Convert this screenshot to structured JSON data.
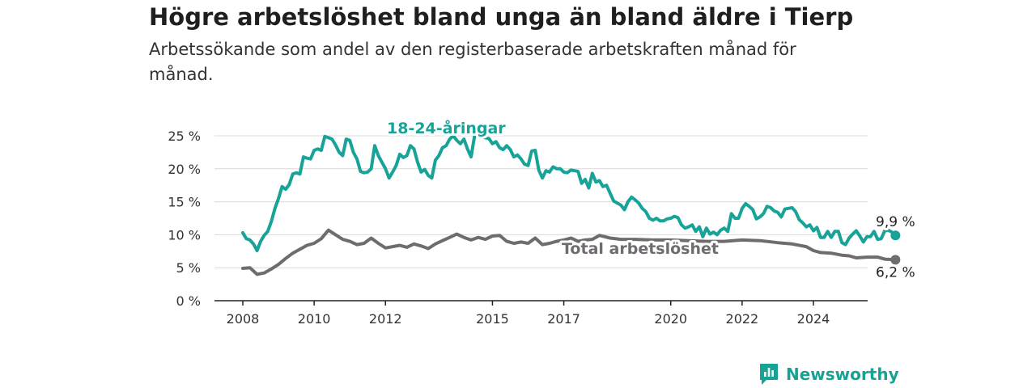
{
  "title": "Högre arbetslöshet bland unga än bland äldre i Tierp",
  "subtitle": "Arbetssökande som andel av den registerbaserade arbetskraften månad för månad.",
  "brand": {
    "name": "Newsworthy",
    "icon": "newsworthy-logo-icon",
    "color": "#16a394"
  },
  "chart_data": {
    "type": "line",
    "title": "Högre arbetslöshet bland unga än bland äldre i Tierp",
    "subtitle": "Arbetssökande som andel av den registerbaserade arbetskraften månad för månad.",
    "xlabel": "",
    "ylabel": "",
    "xlim": [
      2007.6,
      2025.6
    ],
    "ylim": [
      0,
      25
    ],
    "x_ticks": [
      {
        "value": 2008,
        "label": "2008"
      },
      {
        "value": 2010,
        "label": "2010"
      },
      {
        "value": 2012,
        "label": "2012"
      },
      {
        "value": 2015,
        "label": "2015"
      },
      {
        "value": 2017,
        "label": "2017"
      },
      {
        "value": 2020,
        "label": "2020"
      },
      {
        "value": 2022,
        "label": "2022"
      },
      {
        "value": 2024,
        "label": "2024"
      }
    ],
    "y_ticks": [
      {
        "value": 0,
        "label": "0 %"
      },
      {
        "value": 5,
        "label": "5 %"
      },
      {
        "value": 10,
        "label": "10 %"
      },
      {
        "value": 15,
        "label": "15 %"
      },
      {
        "value": 20,
        "label": "20 %"
      },
      {
        "value": 25,
        "label": "25 %"
      }
    ],
    "grid": "horizontal",
    "legend": "inline labels",
    "series": [
      {
        "name": "18-24-åringar",
        "color": "#17a398",
        "end_label": "9,9 %",
        "points": [
          [
            2008.0,
            10.3
          ],
          [
            2008.1,
            9.4
          ],
          [
            2008.2,
            9.2
          ],
          [
            2008.3,
            8.6
          ],
          [
            2008.4,
            7.6
          ],
          [
            2008.5,
            9.0
          ],
          [
            2008.6,
            9.9
          ],
          [
            2008.7,
            10.5
          ],
          [
            2008.8,
            12.0
          ],
          [
            2008.9,
            14.0
          ],
          [
            2009.0,
            15.5
          ],
          [
            2009.1,
            17.3
          ],
          [
            2009.2,
            16.9
          ],
          [
            2009.3,
            17.6
          ],
          [
            2009.4,
            19.2
          ],
          [
            2009.5,
            19.4
          ],
          [
            2009.6,
            19.2
          ],
          [
            2009.7,
            21.8
          ],
          [
            2009.8,
            21.6
          ],
          [
            2009.9,
            21.5
          ],
          [
            2010.0,
            22.8
          ],
          [
            2010.1,
            23.0
          ],
          [
            2010.2,
            22.8
          ],
          [
            2010.3,
            24.9
          ],
          [
            2010.4,
            24.7
          ],
          [
            2010.5,
            24.5
          ],
          [
            2010.6,
            23.6
          ],
          [
            2010.7,
            22.5
          ],
          [
            2010.8,
            22.0
          ],
          [
            2010.9,
            24.5
          ],
          [
            2011.0,
            24.3
          ],
          [
            2011.1,
            22.5
          ],
          [
            2011.2,
            21.5
          ],
          [
            2011.3,
            19.6
          ],
          [
            2011.4,
            19.4
          ],
          [
            2011.5,
            19.5
          ],
          [
            2011.6,
            20.0
          ],
          [
            2011.7,
            23.5
          ],
          [
            2011.8,
            22.0
          ],
          [
            2011.9,
            21.0
          ],
          [
            2012.0,
            20.0
          ],
          [
            2012.1,
            18.6
          ],
          [
            2012.2,
            19.5
          ],
          [
            2012.3,
            20.5
          ],
          [
            2012.4,
            22.2
          ],
          [
            2012.5,
            21.7
          ],
          [
            2012.6,
            22.0
          ],
          [
            2012.7,
            23.5
          ],
          [
            2012.8,
            23.0
          ],
          [
            2012.9,
            21.0
          ],
          [
            2013.0,
            19.5
          ],
          [
            2013.1,
            19.9
          ],
          [
            2013.2,
            19.0
          ],
          [
            2013.3,
            18.6
          ],
          [
            2013.4,
            21.3
          ],
          [
            2013.5,
            22.0
          ],
          [
            2013.6,
            23.2
          ],
          [
            2013.7,
            23.5
          ],
          [
            2013.8,
            24.5
          ],
          [
            2013.9,
            25.0
          ],
          [
            2014.0,
            24.3
          ],
          [
            2014.1,
            23.8
          ],
          [
            2014.2,
            24.5
          ],
          [
            2014.3,
            23.0
          ],
          [
            2014.4,
            21.8
          ],
          [
            2014.5,
            25.0
          ],
          [
            2014.9,
            24.6
          ],
          [
            2015.0,
            23.8
          ],
          [
            2015.1,
            24.1
          ],
          [
            2015.2,
            23.2
          ],
          [
            2015.3,
            22.9
          ],
          [
            2015.4,
            23.5
          ],
          [
            2015.5,
            22.9
          ],
          [
            2015.6,
            21.8
          ],
          [
            2015.7,
            22.1
          ],
          [
            2015.8,
            21.5
          ],
          [
            2015.9,
            20.7
          ],
          [
            2016.0,
            20.5
          ],
          [
            2016.1,
            22.7
          ],
          [
            2016.2,
            22.8
          ],
          [
            2016.3,
            19.8
          ],
          [
            2016.4,
            18.6
          ],
          [
            2016.5,
            19.7
          ],
          [
            2016.6,
            19.5
          ],
          [
            2016.7,
            20.3
          ],
          [
            2016.8,
            20.0
          ],
          [
            2016.9,
            20.0
          ],
          [
            2017.0,
            19.5
          ],
          [
            2017.1,
            19.4
          ],
          [
            2017.2,
            19.8
          ],
          [
            2017.3,
            19.7
          ],
          [
            2017.4,
            19.6
          ],
          [
            2017.5,
            17.8
          ],
          [
            2017.6,
            18.4
          ],
          [
            2017.7,
            17.1
          ],
          [
            2017.8,
            19.3
          ],
          [
            2017.9,
            18.0
          ],
          [
            2018.0,
            18.2
          ],
          [
            2018.1,
            17.3
          ],
          [
            2018.2,
            17.5
          ],
          [
            2018.3,
            16.3
          ],
          [
            2018.4,
            15.1
          ],
          [
            2018.5,
            14.8
          ],
          [
            2018.6,
            14.5
          ],
          [
            2018.7,
            13.8
          ],
          [
            2018.8,
            15.0
          ],
          [
            2018.9,
            15.7
          ],
          [
            2019.0,
            15.3
          ],
          [
            2019.1,
            14.8
          ],
          [
            2019.2,
            14.0
          ],
          [
            2019.3,
            13.5
          ],
          [
            2019.4,
            12.5
          ],
          [
            2019.5,
            12.2
          ],
          [
            2019.6,
            12.5
          ],
          [
            2019.7,
            12.1
          ],
          [
            2019.8,
            12.1
          ],
          [
            2019.9,
            12.4
          ],
          [
            2020.0,
            12.5
          ],
          [
            2020.1,
            12.8
          ],
          [
            2020.2,
            12.6
          ],
          [
            2020.3,
            11.5
          ],
          [
            2020.4,
            11.0
          ],
          [
            2020.5,
            11.2
          ],
          [
            2020.6,
            11.5
          ],
          [
            2020.7,
            10.5
          ],
          [
            2020.8,
            11.2
          ],
          [
            2020.9,
            9.7
          ],
          [
            2021.0,
            11.0
          ],
          [
            2021.1,
            10.1
          ],
          [
            2021.2,
            10.4
          ],
          [
            2021.3,
            10.0
          ],
          [
            2021.4,
            10.7
          ],
          [
            2021.5,
            11.0
          ],
          [
            2021.6,
            10.5
          ],
          [
            2021.7,
            13.2
          ],
          [
            2021.8,
            12.5
          ],
          [
            2021.9,
            12.5
          ],
          [
            2022.0,
            14.0
          ],
          [
            2022.1,
            14.7
          ],
          [
            2022.2,
            14.3
          ],
          [
            2022.3,
            13.8
          ],
          [
            2022.4,
            12.4
          ],
          [
            2022.5,
            12.7
          ],
          [
            2022.6,
            13.2
          ],
          [
            2022.7,
            14.3
          ],
          [
            2022.8,
            14.1
          ],
          [
            2022.9,
            13.6
          ],
          [
            2023.0,
            13.4
          ],
          [
            2023.1,
            12.7
          ],
          [
            2023.2,
            13.9
          ],
          [
            2023.3,
            14.0
          ],
          [
            2023.4,
            14.1
          ],
          [
            2023.5,
            13.5
          ],
          [
            2023.6,
            12.3
          ],
          [
            2023.7,
            11.8
          ],
          [
            2023.8,
            11.2
          ],
          [
            2023.9,
            11.5
          ],
          [
            2024.0,
            10.6
          ],
          [
            2024.1,
            11.1
          ],
          [
            2024.2,
            9.6
          ],
          [
            2024.3,
            9.6
          ],
          [
            2024.4,
            10.5
          ],
          [
            2024.5,
            9.6
          ],
          [
            2024.6,
            10.5
          ],
          [
            2024.7,
            10.5
          ],
          [
            2024.8,
            8.8
          ],
          [
            2024.9,
            8.5
          ],
          [
            2025.0,
            9.5
          ],
          [
            2025.1,
            10.1
          ],
          [
            2025.2,
            10.6
          ],
          [
            2025.3,
            9.8
          ],
          [
            2025.4,
            8.9
          ],
          [
            2025.5,
            9.7
          ],
          [
            2025.6,
            9.7
          ],
          [
            2025.7,
            10.5
          ],
          [
            2025.8,
            9.3
          ],
          [
            2025.9,
            9.4
          ],
          [
            2026.0,
            10.6
          ],
          [
            2026.1,
            10.7
          ],
          [
            2026.2,
            10.4
          ],
          [
            2026.3,
            9.9
          ]
        ]
      },
      {
        "name": "Total arbetslöshet",
        "color": "#6f6b70",
        "end_label": "6,2 %",
        "points": [
          [
            2008.0,
            4.9
          ],
          [
            2008.2,
            5.0
          ],
          [
            2008.4,
            4.0
          ],
          [
            2008.6,
            4.2
          ],
          [
            2008.8,
            4.8
          ],
          [
            2009.0,
            5.5
          ],
          [
            2009.2,
            6.4
          ],
          [
            2009.4,
            7.2
          ],
          [
            2009.6,
            7.8
          ],
          [
            2009.8,
            8.4
          ],
          [
            2010.0,
            8.7
          ],
          [
            2010.2,
            9.4
          ],
          [
            2010.4,
            10.7
          ],
          [
            2010.6,
            10.0
          ],
          [
            2010.8,
            9.3
          ],
          [
            2011.0,
            9.0
          ],
          [
            2011.2,
            8.5
          ],
          [
            2011.4,
            8.7
          ],
          [
            2011.6,
            9.5
          ],
          [
            2011.8,
            8.7
          ],
          [
            2012.0,
            8.0
          ],
          [
            2012.2,
            8.2
          ],
          [
            2012.4,
            8.4
          ],
          [
            2012.6,
            8.1
          ],
          [
            2012.8,
            8.6
          ],
          [
            2013.0,
            8.3
          ],
          [
            2013.2,
            7.9
          ],
          [
            2013.4,
            8.6
          ],
          [
            2013.6,
            9.1
          ],
          [
            2013.8,
            9.6
          ],
          [
            2014.0,
            10.1
          ],
          [
            2014.2,
            9.6
          ],
          [
            2014.4,
            9.2
          ],
          [
            2014.6,
            9.6
          ],
          [
            2014.8,
            9.3
          ],
          [
            2015.0,
            9.8
          ],
          [
            2015.2,
            9.9
          ],
          [
            2015.4,
            9.0
          ],
          [
            2015.6,
            8.7
          ],
          [
            2015.8,
            8.9
          ],
          [
            2016.0,
            8.7
          ],
          [
            2016.2,
            9.5
          ],
          [
            2016.4,
            8.5
          ],
          [
            2016.6,
            8.7
          ],
          [
            2016.8,
            9.0
          ],
          [
            2017.0,
            9.2
          ],
          [
            2017.2,
            9.5
          ],
          [
            2017.4,
            9.0
          ],
          [
            2017.6,
            9.2
          ],
          [
            2017.8,
            9.3
          ],
          [
            2018.0,
            9.9
          ],
          [
            2018.3,
            9.5
          ],
          [
            2018.6,
            9.3
          ],
          [
            2019.0,
            9.3
          ],
          [
            2019.5,
            9.2
          ],
          [
            2020.0,
            9.2
          ],
          [
            2020.5,
            9.1
          ],
          [
            2021.0,
            9.0
          ],
          [
            2021.5,
            9.0
          ],
          [
            2022.0,
            9.2
          ],
          [
            2022.5,
            9.1
          ],
          [
            2023.0,
            8.8
          ],
          [
            2023.4,
            8.6
          ],
          [
            2023.8,
            8.2
          ],
          [
            2024.0,
            7.6
          ],
          [
            2024.2,
            7.3
          ],
          [
            2024.5,
            7.2
          ],
          [
            2024.8,
            6.9
          ],
          [
            2025.0,
            6.8
          ],
          [
            2025.2,
            6.5
          ],
          [
            2025.5,
            6.6
          ],
          [
            2025.8,
            6.6
          ],
          [
            2026.0,
            6.3
          ],
          [
            2026.3,
            6.2
          ]
        ]
      }
    ]
  }
}
